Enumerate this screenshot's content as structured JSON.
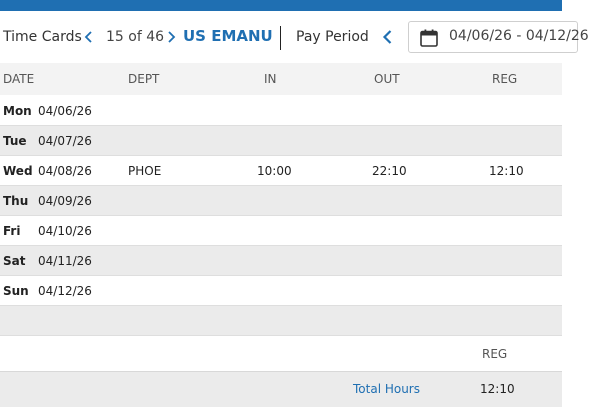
{
  "toolbar": {
    "title": "Time Cards",
    "record_position": "15 of 46",
    "employee": "US EMANU",
    "pay_period_label": "Pay Period",
    "date_range": "04/06/26 - 04/12/26"
  },
  "icons": {
    "prev": "chevron-left-icon",
    "next": "chevron-right-icon",
    "calendar": "calendar-icon"
  },
  "colors": {
    "accent": "#1f6fb2",
    "row_alt": "#ebebeb"
  },
  "grid": {
    "headers": {
      "date": "DATE",
      "dept": "DEPT",
      "in": "IN",
      "out": "OUT",
      "reg": "REG"
    },
    "rows": [
      {
        "day": "Mon",
        "date": "04/06/26",
        "dept": "",
        "in": "",
        "out": "",
        "reg": ""
      },
      {
        "day": "Tue",
        "date": "04/07/26",
        "dept": "",
        "in": "",
        "out": "",
        "reg": ""
      },
      {
        "day": "Wed",
        "date": "04/08/26",
        "dept": "PHOE",
        "in": "10:00",
        "out": "22:10",
        "reg": "12:10"
      },
      {
        "day": "Thu",
        "date": "04/09/26",
        "dept": "",
        "in": "",
        "out": "",
        "reg": ""
      },
      {
        "day": "Fri",
        "date": "04/10/26",
        "dept": "",
        "in": "",
        "out": "",
        "reg": ""
      },
      {
        "day": "Sat",
        "date": "04/11/26",
        "dept": "",
        "in": "",
        "out": "",
        "reg": ""
      },
      {
        "day": "Sun",
        "date": "04/12/26",
        "dept": "",
        "in": "",
        "out": "",
        "reg": ""
      }
    ]
  },
  "summary": {
    "reg_header": "REG",
    "total_label": "Total Hours",
    "total_reg": "12:10"
  }
}
